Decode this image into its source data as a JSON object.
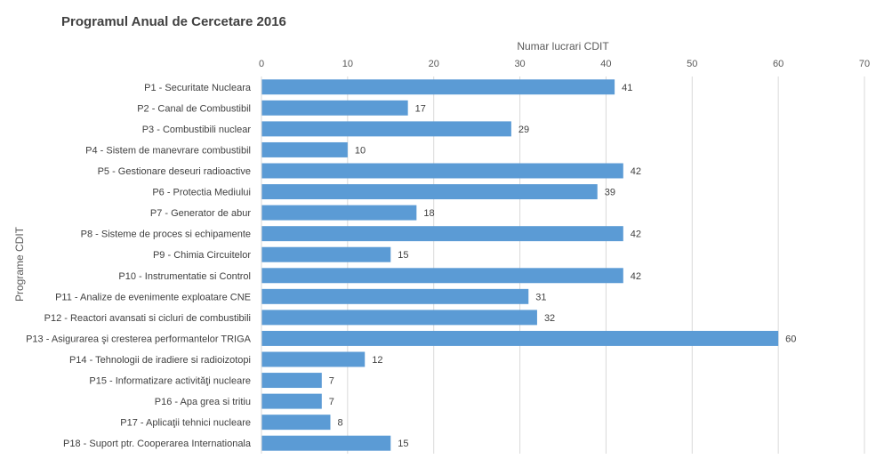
{
  "chart_data": {
    "type": "bar",
    "orientation": "horizontal",
    "title": "Programul Anual de Cercetare 2016",
    "xlabel": "Numar lucrari CDIT",
    "ylabel": "Programe CDIT",
    "xlim": [
      0,
      70
    ],
    "xticks": [
      0,
      10,
      20,
      30,
      40,
      50,
      60,
      70
    ],
    "x_axis_position": "top",
    "grid": "vertical",
    "legend": "none",
    "bar_color": "#5b9bd5",
    "categories": [
      "P1 - Securitate Nucleara",
      "P2 - Canal de Combustibil",
      "P3 - Combustibili nuclear",
      "P4 - Sistem de manevrare combustibil",
      "P5 - Gestionare deseuri radioactive",
      "P6 - Protectia Mediului",
      "P7 - Generator de abur",
      "P8 - Sisteme de proces si echipamente",
      "P9 - Chimia Circuitelor",
      "P10 - Instrumentatie si Control",
      "P11 - Analize de evenimente exploatare CNE",
      "P12 - Reactori avansati si cicluri de combustibili",
      "P13 - Asigurarea şi cresterea performantelor TRIGA",
      "P14 - Tehnologii de iradiere si radioizotopi",
      "P15 - Informatizare activităţi nucleare",
      "P16 - Apa grea si tritiu",
      "P17 - Aplicaţii tehnici nucleare",
      "P18 - Suport ptr. Cooperarea Internationala"
    ],
    "values": [
      41,
      17,
      29,
      10,
      42,
      39,
      18,
      42,
      15,
      42,
      31,
      32,
      60,
      12,
      7,
      7,
      8,
      15
    ],
    "data_labels": true
  }
}
